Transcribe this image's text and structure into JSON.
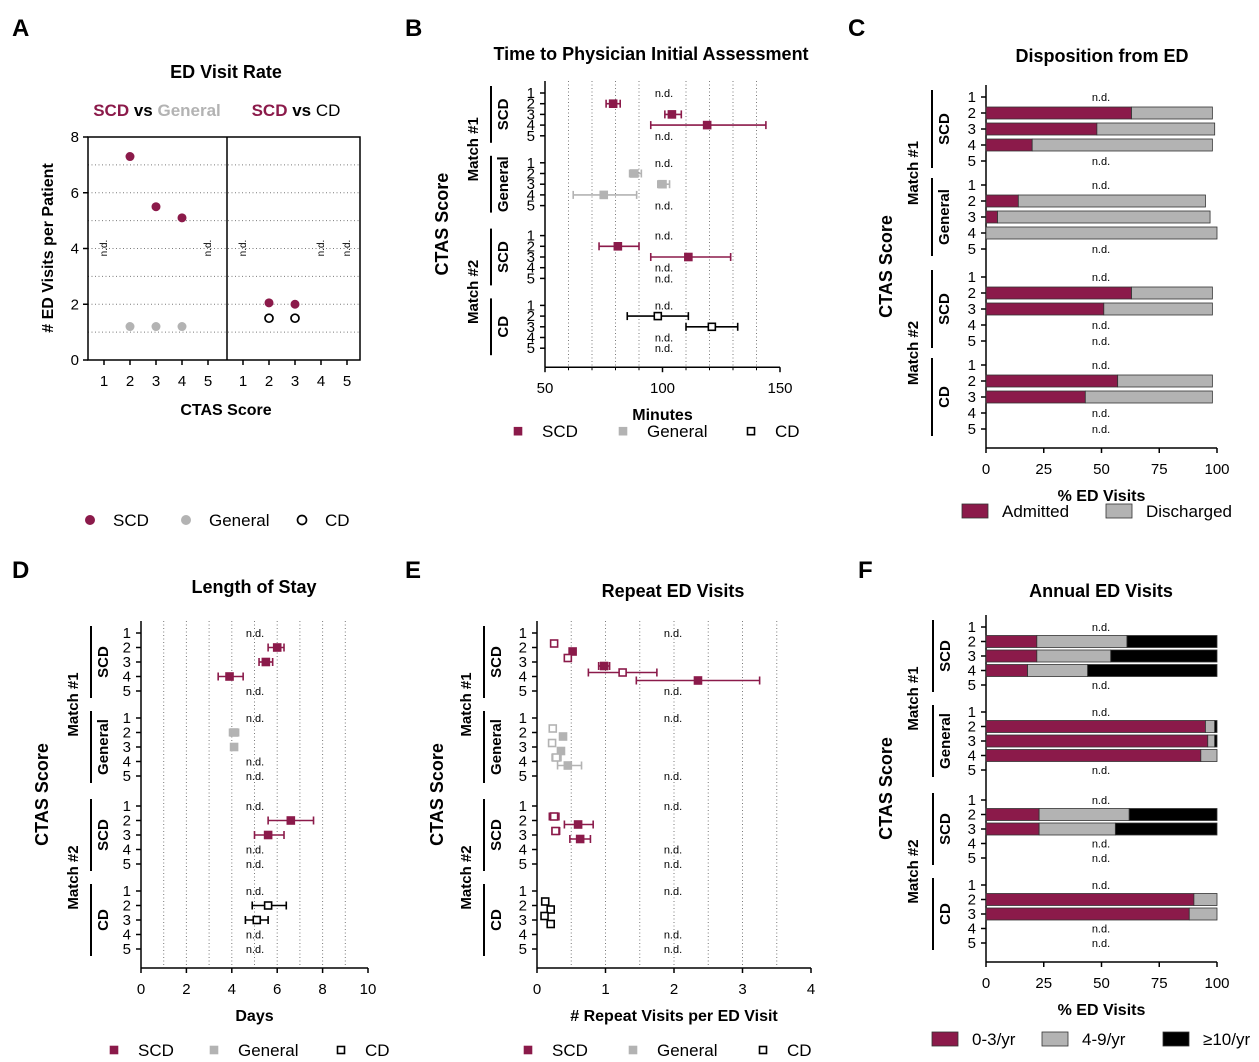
{
  "colors": {
    "scd": "#8b1a4a",
    "general": "#b3b3b3",
    "cd": "#000000",
    "grid": "#7a7a7a",
    "axis": "#000000"
  },
  "nd_label": "n.d.",
  "y_axis_title": "CTAS Score",
  "match_labels": [
    "Match #1",
    "Match #2"
  ],
  "chart_data": [
    {
      "panel": "A",
      "type": "scatter",
      "title": "ED Visit Rate",
      "xlabel": "CTAS Score",
      "ylabel": "# ED Visits per Patient",
      "ylim": [
        0,
        8
      ],
      "yticks": [
        "0",
        "2",
        "4",
        "6",
        "8"
      ],
      "xticks": [
        "1",
        "2",
        "3",
        "4",
        "5"
      ],
      "header_left": {
        "a": "SCD",
        "vs": "vs",
        "b": "General"
      },
      "header_right": {
        "a": "SCD",
        "vs": "vs",
        "b": "CD"
      },
      "left": {
        "series": [
          {
            "name": "SCD",
            "points": [
              {
                "x": 2,
                "y": 7.3
              },
              {
                "x": 3,
                "y": 5.5
              },
              {
                "x": 4,
                "y": 5.1
              }
            ]
          },
          {
            "name": "General",
            "points": [
              {
                "x": 2,
                "y": 1.2
              },
              {
                "x": 3,
                "y": 1.2
              },
              {
                "x": 4,
                "y": 1.2
              }
            ]
          }
        ],
        "nd": [
          1,
          5
        ]
      },
      "right": {
        "series": [
          {
            "name": "SCD",
            "points": [
              {
                "x": 2,
                "y": 2.05
              },
              {
                "x": 3,
                "y": 2.0
              }
            ]
          },
          {
            "name": "CD",
            "points": [
              {
                "x": 2,
                "y": 1.5
              },
              {
                "x": 3,
                "y": 1.5
              }
            ]
          }
        ],
        "nd": [
          1,
          4,
          5
        ]
      },
      "legend": [
        "SCD",
        "General",
        "CD"
      ]
    },
    {
      "panel": "B",
      "type": "scatter",
      "title": "Time to Physician Initial Assessment",
      "xlabel": "Minutes",
      "xlim": [
        50,
        150
      ],
      "xticks": [
        50,
        100,
        150
      ],
      "legend": [
        "SCD",
        "General",
        "CD"
      ],
      "groups": [
        {
          "match": 1,
          "label": "SCD",
          "series": "SCD",
          "rows": [
            null,
            {
              "m": 79,
              "lo": 76,
              "hi": 82
            },
            {
              "m": 104,
              "lo": 101,
              "hi": 108
            },
            {
              "m": 119,
              "lo": 95,
              "hi": 144
            },
            null
          ]
        },
        {
          "match": 1,
          "label": "General",
          "series": "General",
          "rows": [
            null,
            {
              "m": 88,
              "lo": 86,
              "hi": 91
            },
            {
              "m": 100,
              "lo": 98,
              "hi": 103
            },
            {
              "m": 75,
              "lo": 62,
              "hi": 89
            },
            null
          ]
        },
        {
          "match": 2,
          "label": "SCD",
          "series": "SCD",
          "rows": [
            null,
            {
              "m": 81,
              "lo": 73,
              "hi": 90
            },
            {
              "m": 111,
              "lo": 95,
              "hi": 129
            },
            null,
            null
          ]
        },
        {
          "match": 2,
          "label": "CD",
          "series": "CD",
          "rows": [
            null,
            {
              "m": 98,
              "lo": 85,
              "hi": 111
            },
            {
              "m": 121,
              "lo": 110,
              "hi": 132
            },
            null,
            null
          ]
        }
      ]
    },
    {
      "panel": "C",
      "type": "bar",
      "title": "Disposition from ED",
      "xlabel": "% ED Visits",
      "xlim": [
        0,
        100
      ],
      "xticks": [
        0,
        25,
        50,
        75,
        100
      ],
      "legend": [
        "Admitted",
        "Discharged"
      ],
      "groups": [
        {
          "match": 1,
          "label": "SCD",
          "rows": [
            null,
            [
              63,
              35
            ],
            [
              48,
              51
            ],
            [
              20,
              78
            ],
            null
          ]
        },
        {
          "match": 1,
          "label": "General",
          "rows": [
            null,
            [
              14,
              81
            ],
            [
              5,
              92
            ],
            [
              0,
              100
            ],
            null
          ]
        },
        {
          "match": 2,
          "label": "SCD",
          "rows": [
            null,
            [
              63,
              35
            ],
            [
              51,
              47
            ],
            null,
            null
          ]
        },
        {
          "match": 2,
          "label": "CD",
          "rows": [
            null,
            [
              57,
              41
            ],
            [
              43,
              55
            ],
            null,
            null
          ]
        }
      ]
    },
    {
      "panel": "D",
      "type": "scatter",
      "title": "Length of Stay",
      "xlabel": "Days",
      "xlim": [
        0,
        10
      ],
      "xticks": [
        0,
        2,
        4,
        6,
        8,
        10
      ],
      "legend": [
        "SCD",
        "General",
        "CD"
      ],
      "groups": [
        {
          "match": 1,
          "label": "SCD",
          "series": "SCD",
          "rows": [
            null,
            {
              "m": 6.0,
              "lo": 5.6,
              "hi": 6.3
            },
            {
              "m": 5.5,
              "lo": 5.2,
              "hi": 5.8
            },
            {
              "m": 3.9,
              "lo": 3.4,
              "hi": 4.5
            },
            null
          ]
        },
        {
          "match": 1,
          "label": "General",
          "series": "General",
          "rows": [
            null,
            {
              "m": 4.1,
              "lo": 3.9,
              "hi": 4.3
            },
            {
              "m": 4.1,
              "lo": 4.0,
              "hi": 4.2
            },
            null,
            null
          ]
        },
        {
          "match": 2,
          "label": "SCD",
          "series": "SCD",
          "rows": [
            null,
            {
              "m": 6.6,
              "lo": 5.6,
              "hi": 7.6
            },
            {
              "m": 5.6,
              "lo": 5.0,
              "hi": 6.3
            },
            null,
            null
          ]
        },
        {
          "match": 2,
          "label": "CD",
          "series": "CD",
          "rows": [
            null,
            {
              "m": 5.6,
              "lo": 4.9,
              "hi": 6.4
            },
            {
              "m": 5.1,
              "lo": 4.6,
              "hi": 5.6
            },
            null,
            null
          ]
        }
      ]
    },
    {
      "panel": "E",
      "type": "scatter",
      "title": "Repeat ED Visits",
      "xlabel": "# Repeat Visits per ED Visit",
      "xlim": [
        0,
        4
      ],
      "xticks": [
        0,
        1,
        2,
        3,
        4
      ],
      "legend": [
        "SCD",
        "General",
        "CD"
      ],
      "groups": [
        {
          "match": 1,
          "label": "SCD",
          "series": "SCD",
          "rows": [
            null,
            [
              {
                "m": 0.25,
                "lo": 0.22,
                "hi": 0.28,
                "open": true
              },
              {
                "m": 0.52,
                "lo": 0.48,
                "hi": 0.56
              }
            ],
            [
              {
                "m": 0.45,
                "lo": 0.42,
                "hi": 0.48,
                "open": true
              },
              {
                "m": 0.98,
                "lo": 0.9,
                "hi": 1.06
              }
            ],
            [
              {
                "m": 1.25,
                "lo": 0.75,
                "hi": 1.75,
                "open": true
              },
              {
                "m": 2.35,
                "lo": 1.45,
                "hi": 3.25
              }
            ],
            null
          ]
        },
        {
          "match": 1,
          "label": "General",
          "series": "General",
          "rows": [
            null,
            [
              {
                "m": 0.23,
                "lo": 0.21,
                "hi": 0.26,
                "open": true
              },
              {
                "m": 0.38,
                "lo": 0.36,
                "hi": 0.41
              }
            ],
            [
              {
                "m": 0.22,
                "lo": 0.2,
                "hi": 0.25,
                "open": true
              },
              {
                "m": 0.35,
                "lo": 0.33,
                "hi": 0.37
              }
            ],
            [
              {
                "m": 0.28,
                "lo": 0.22,
                "hi": 0.35,
                "open": true
              },
              {
                "m": 0.45,
                "lo": 0.3,
                "hi": 0.65
              }
            ],
            null
          ]
        },
        {
          "match": 2,
          "label": "SCD",
          "series": "SCD",
          "rows": [
            null,
            [
              {
                "m": 0.25,
                "lo": 0.18,
                "hi": 0.32,
                "open": true
              },
              {
                "m": 0.6,
                "lo": 0.4,
                "hi": 0.82
              }
            ],
            [
              {
                "m": 0.27,
                "lo": 0.22,
                "hi": 0.33,
                "open": true
              },
              {
                "m": 0.63,
                "lo": 0.48,
                "hi": 0.78
              }
            ],
            null,
            null
          ]
        },
        {
          "match": 2,
          "label": "CD",
          "series": "CD",
          "rows": [
            null,
            [
              {
                "m": 0.12,
                "lo": 0.1,
                "hi": 0.15,
                "open": true
              },
              {
                "m": 0.2,
                "lo": 0.16,
                "hi": 0.25
              }
            ],
            [
              {
                "m": 0.11,
                "lo": 0.09,
                "hi": 0.14,
                "open": true
              },
              {
                "m": 0.2,
                "lo": 0.17,
                "hi": 0.24
              }
            ],
            null,
            null
          ]
        }
      ]
    },
    {
      "panel": "F",
      "type": "bar",
      "title": "Annual ED Visits",
      "xlabel": "% ED Visits",
      "xlim": [
        0,
        100
      ],
      "xticks": [
        0,
        25,
        50,
        75,
        100
      ],
      "legend": [
        "0-3/yr",
        "4-9/yr",
        "≥10/yr"
      ],
      "groups": [
        {
          "match": 1,
          "label": "SCD",
          "rows": [
            null,
            [
              22,
              39,
              39
            ],
            [
              22,
              32,
              46
            ],
            [
              18,
              26,
              56
            ],
            null
          ]
        },
        {
          "match": 1,
          "label": "General",
          "rows": [
            null,
            [
              95,
              4,
              1
            ],
            [
              96,
              3,
              1
            ],
            [
              93,
              7,
              0
            ],
            null
          ]
        },
        {
          "match": 2,
          "label": "SCD",
          "rows": [
            null,
            [
              23,
              39,
              38
            ],
            [
              23,
              33,
              44
            ],
            null,
            null
          ]
        },
        {
          "match": 2,
          "label": "CD",
          "rows": [
            null,
            [
              90,
              10,
              0
            ],
            [
              88,
              12,
              0
            ],
            null,
            null
          ]
        }
      ]
    }
  ]
}
